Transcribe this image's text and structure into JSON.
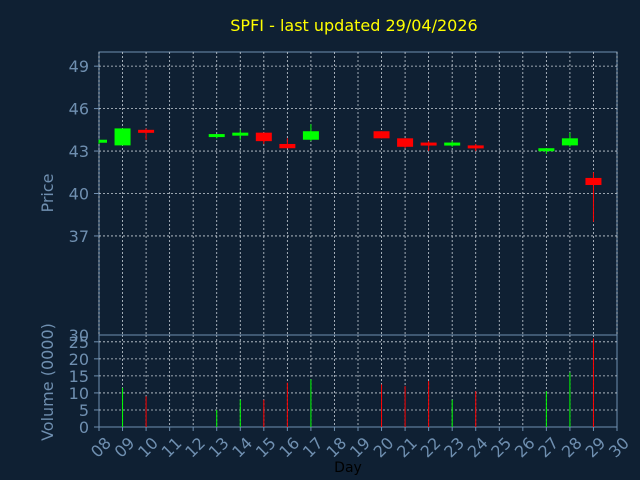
{
  "chart_data": {
    "type": "candlestick",
    "title": "SPFI - last updated 29/04/2026",
    "xlabel": "Day",
    "price_panel": {
      "ylabel": "Price",
      "ylim": [
        30,
        50
      ],
      "yticks": [
        37,
        40,
        43,
        46,
        49
      ]
    },
    "volume_panel": {
      "ylabel": "Volume (0000)",
      "ylim": [
        0,
        27
      ],
      "yticks": [
        0,
        5,
        10,
        15,
        20,
        25
      ]
    },
    "x_ticks": [
      "08",
      "09",
      "10",
      "11",
      "12",
      "13",
      "14",
      "15",
      "16",
      "17",
      "18",
      "19",
      "20",
      "21",
      "22",
      "23",
      "24",
      "25",
      "26",
      "27",
      "28",
      "29",
      "30"
    ],
    "x_range": [
      8,
      30
    ],
    "grid": true,
    "colors": {
      "background": "#0f2033",
      "axis": "#6f8fb0",
      "grid": "#c8d0d8",
      "title": "#ffff00",
      "up": "#00ff00",
      "down": "#ff0000"
    },
    "candles": [
      {
        "day": 8,
        "open": 43.6,
        "high": 43.8,
        "low": 43.5,
        "close": 43.8
      },
      {
        "day": 9,
        "open": 43.4,
        "high": 44.6,
        "low": 43.4,
        "close": 44.6
      },
      {
        "day": 10,
        "open": 44.5,
        "high": 44.6,
        "low": 43.8,
        "close": 44.3
      },
      {
        "day": 13,
        "open": 44.0,
        "high": 44.2,
        "low": 43.9,
        "close": 44.2
      },
      {
        "day": 14,
        "open": 44.1,
        "high": 44.5,
        "low": 43.8,
        "close": 44.3
      },
      {
        "day": 15,
        "open": 44.3,
        "high": 44.3,
        "low": 43.5,
        "close": 43.7
      },
      {
        "day": 16,
        "open": 43.5,
        "high": 43.9,
        "low": 43.2,
        "close": 43.2
      },
      {
        "day": 17,
        "open": 43.8,
        "high": 44.9,
        "low": 43.7,
        "close": 44.4
      },
      {
        "day": 20,
        "open": 44.4,
        "high": 44.4,
        "low": 43.9,
        "close": 43.9
      },
      {
        "day": 21,
        "open": 43.9,
        "high": 43.9,
        "low": 43.2,
        "close": 43.3
      },
      {
        "day": 22,
        "open": 43.6,
        "high": 43.7,
        "low": 43.0,
        "close": 43.5
      },
      {
        "day": 23,
        "open": 43.4,
        "high": 43.7,
        "low": 43.3,
        "close": 43.6
      },
      {
        "day": 24,
        "open": 43.4,
        "high": 43.5,
        "low": 43.0,
        "close": 43.2
      },
      {
        "day": 27,
        "open": 43.0,
        "high": 43.2,
        "low": 42.8,
        "close": 43.2
      },
      {
        "day": 28,
        "open": 43.4,
        "high": 44.3,
        "low": 43.3,
        "close": 43.9
      },
      {
        "day": 29,
        "open": 41.1,
        "high": 41.5,
        "low": 38.0,
        "close": 40.6
      }
    ],
    "volume": [
      {
        "day": 9,
        "value": 11.5,
        "dir": "up"
      },
      {
        "day": 10,
        "value": 9,
        "dir": "down"
      },
      {
        "day": 13,
        "value": 5,
        "dir": "up"
      },
      {
        "day": 14,
        "value": 8,
        "dir": "up"
      },
      {
        "day": 15,
        "value": 8,
        "dir": "down"
      },
      {
        "day": 16,
        "value": 13,
        "dir": "down"
      },
      {
        "day": 17,
        "value": 14,
        "dir": "up"
      },
      {
        "day": 20,
        "value": 12.5,
        "dir": "down"
      },
      {
        "day": 21,
        "value": 12,
        "dir": "down"
      },
      {
        "day": 22,
        "value": 13.5,
        "dir": "down"
      },
      {
        "day": 23,
        "value": 8,
        "dir": "up"
      },
      {
        "day": 24,
        "value": 10.5,
        "dir": "down"
      },
      {
        "day": 27,
        "value": 10.5,
        "dir": "up"
      },
      {
        "day": 28,
        "value": 16,
        "dir": "up"
      },
      {
        "day": 29,
        "value": 26,
        "dir": "down"
      }
    ]
  }
}
